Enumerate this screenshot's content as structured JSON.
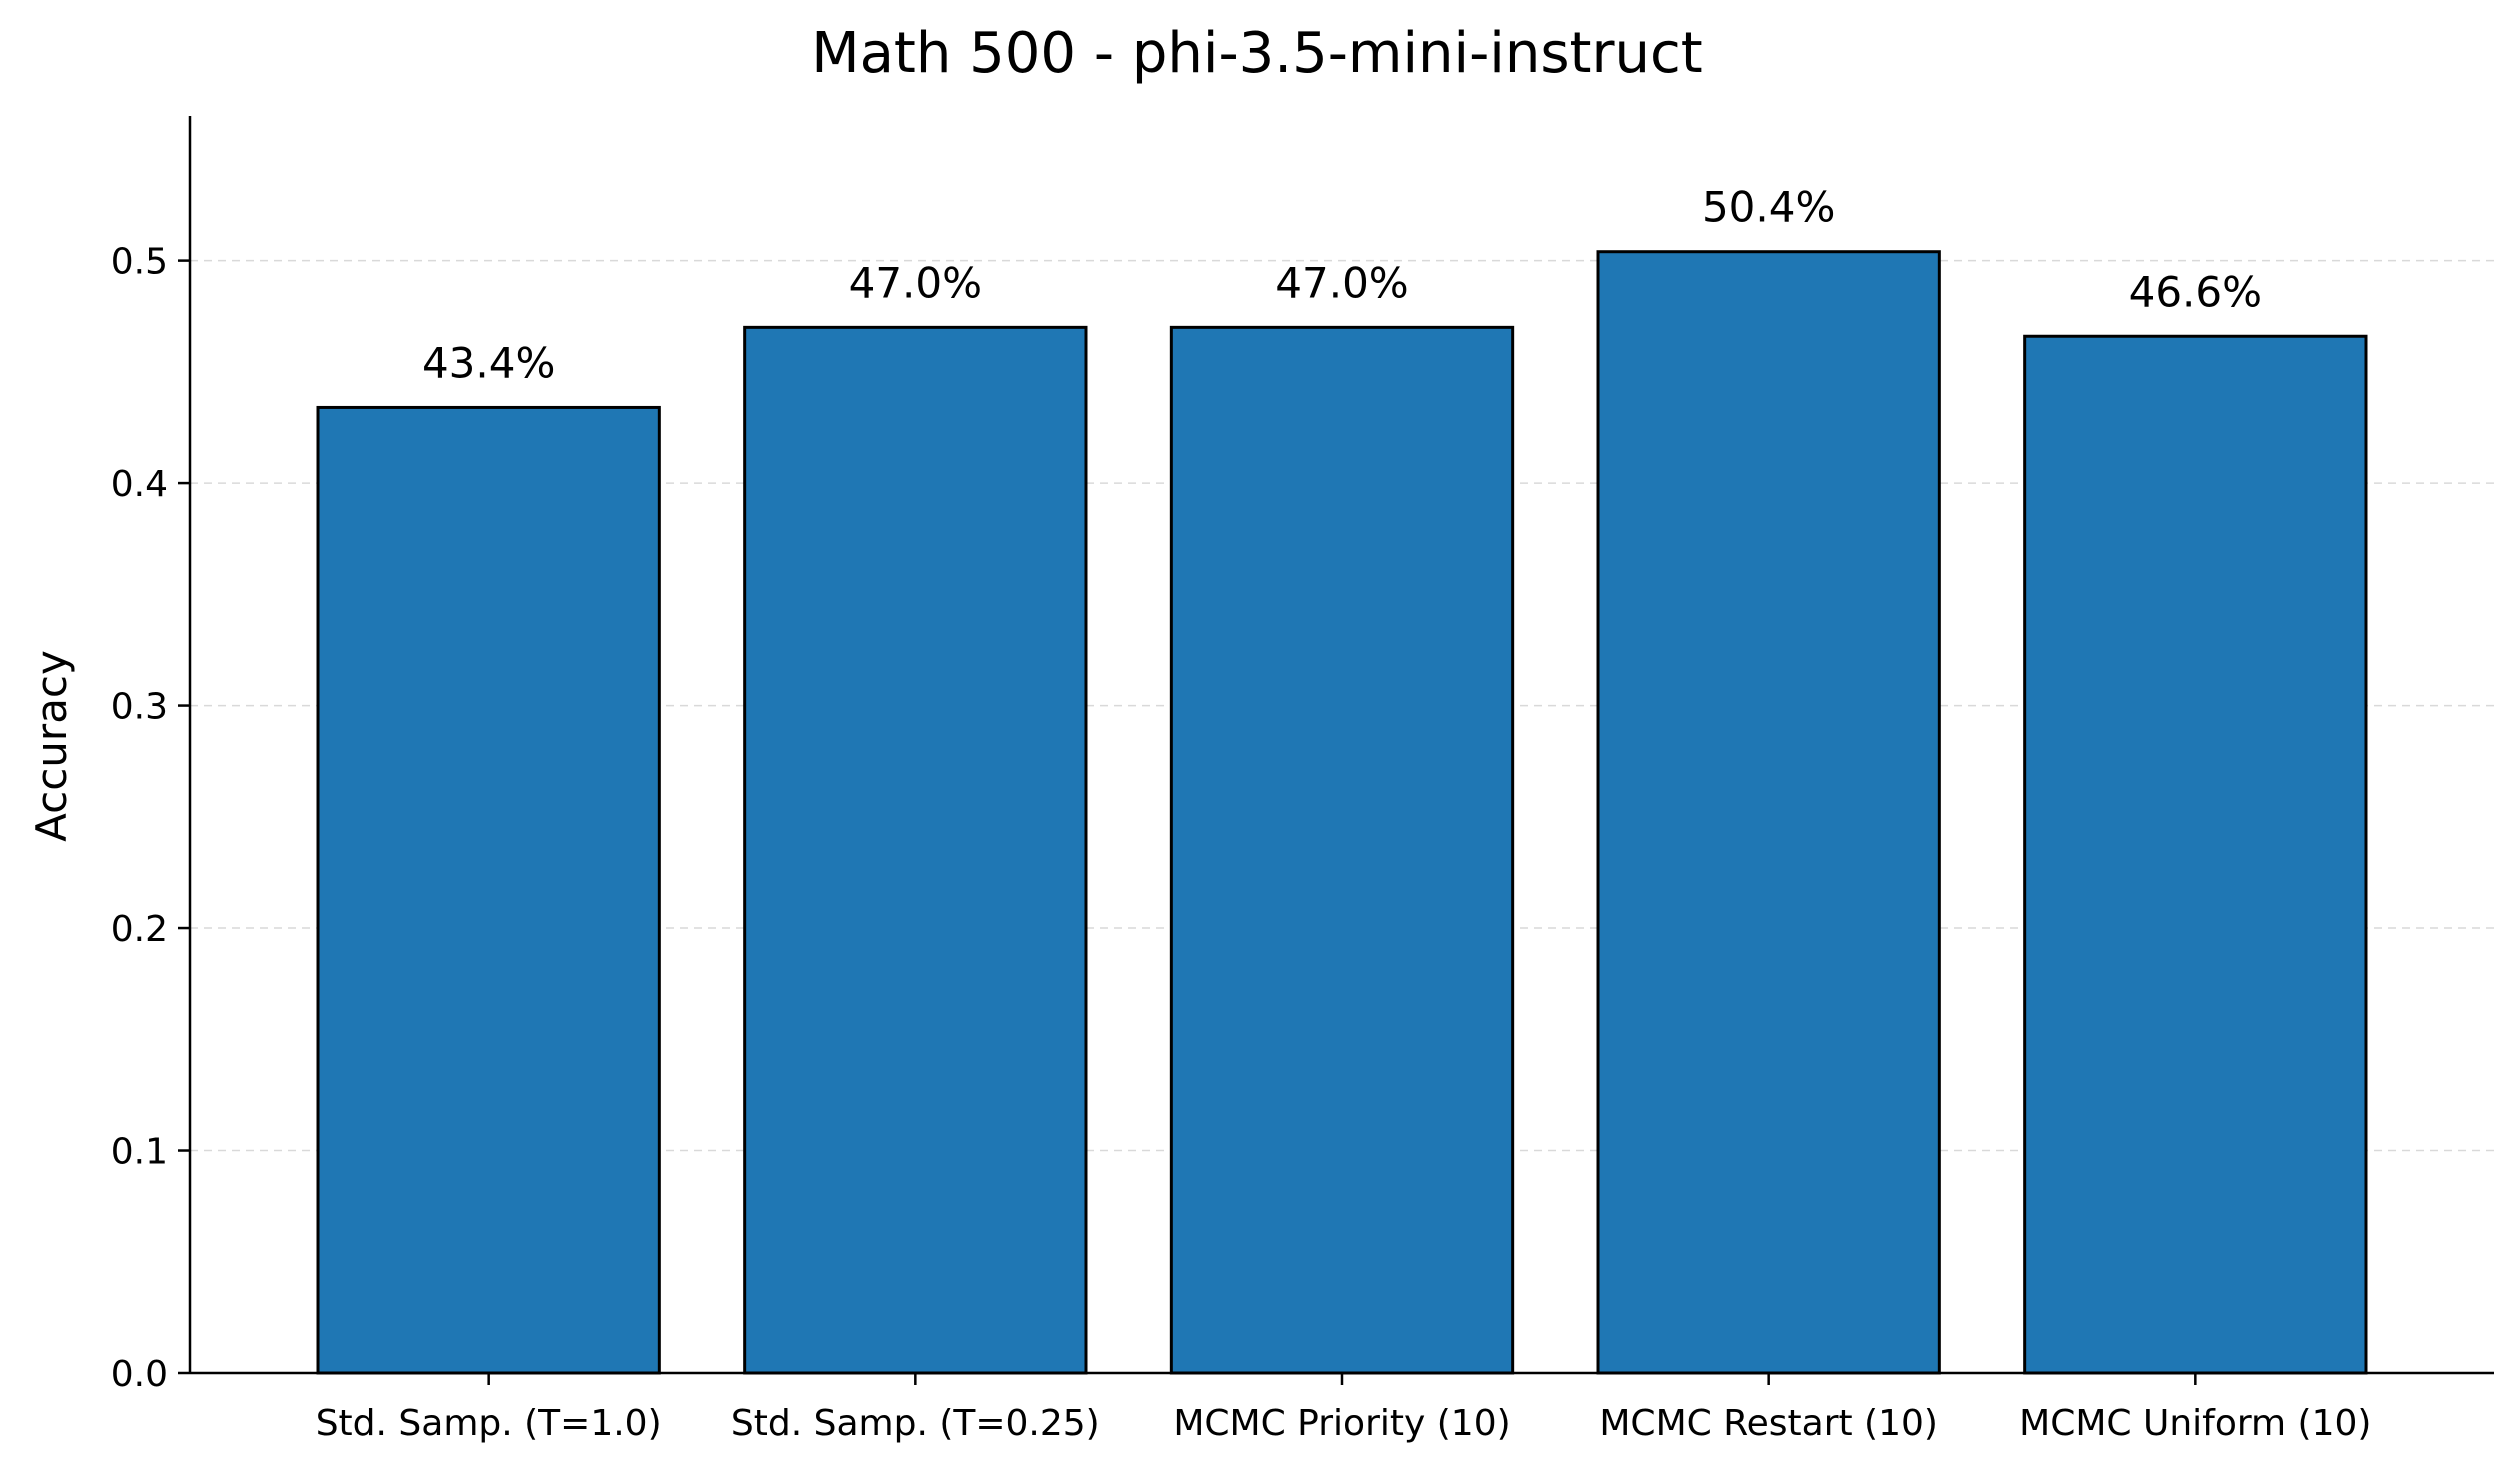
{
  "chart_data": {
    "type": "bar",
    "title": "Math 500 - phi-3.5-mini-instruct",
    "xlabel": "",
    "ylabel": "Accuracy",
    "categories": [
      "Std. Samp. (T=1.0)",
      "Std. Samp. (T=0.25)",
      "MCMC Priority (10)",
      "MCMC Restart (10)",
      "MCMC Uniform (10)"
    ],
    "values": [
      0.434,
      0.47,
      0.47,
      0.504,
      0.466
    ],
    "data_labels": [
      "43.4%",
      "47.0%",
      "47.0%",
      "50.4%",
      "46.6%"
    ],
    "ylim": [
      0,
      0.565
    ],
    "yticks": [
      0.0,
      0.1,
      0.2,
      0.3,
      0.4,
      0.5
    ],
    "ytick_labels": [
      "0.0",
      "0.1",
      "0.2",
      "0.3",
      "0.4",
      "0.5"
    ],
    "grid": true,
    "bar_color": "#1f77b4",
    "edge_color": "#000000"
  }
}
